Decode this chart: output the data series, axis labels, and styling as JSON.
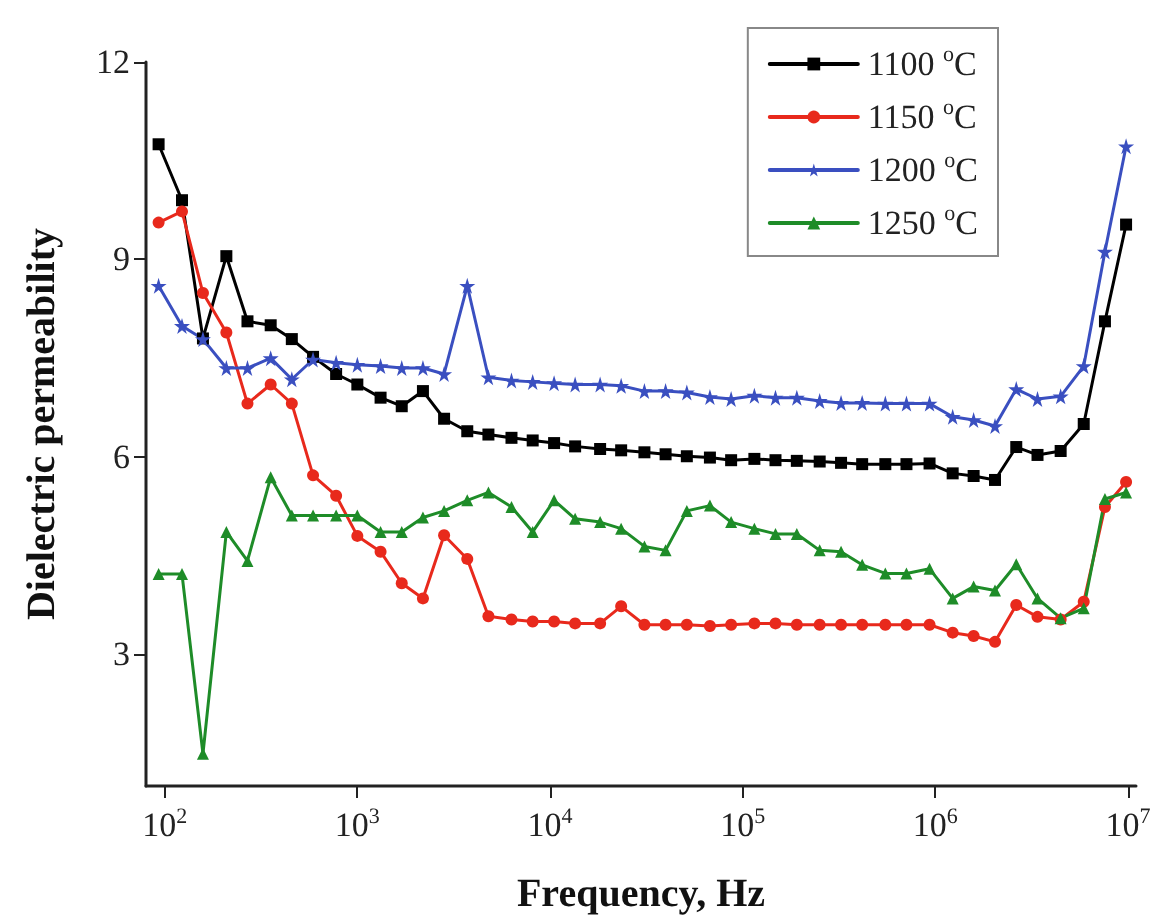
{
  "chart_data": {
    "type": "line",
    "xlabel": "Frequency, Hz",
    "ylabel": "Dielectric permeability",
    "x": [
      93,
      123,
      158,
      209,
      269,
      355,
      457,
      589,
      776,
      1000,
      1320,
      1700,
      2190,
      2820,
      3720,
      4790,
      6310,
      8130,
      10500,
      13500,
      18200,
      23400,
      30900,
      39800,
      51300,
      67600,
      87100,
      115000,
      148000,
      191000,
      251000,
      324000,
      417000,
      550000,
      708000,
      933000,
      1230000,
      1580000,
      2040000,
      2630000,
      3390000,
      4470000,
      5890000,
      7590000,
      9770000
    ],
    "series": [
      {
        "name": "1100 $^{o}$C",
        "color": "#000000",
        "marker": "square",
        "values": [
          10.75,
          9.9,
          7.8,
          9.05,
          8.06,
          8.0,
          7.79,
          7.52,
          7.26,
          7.1,
          6.9,
          6.77,
          7.0,
          6.58,
          6.39,
          6.34,
          6.29,
          6.25,
          6.21,
          6.16,
          6.12,
          6.1,
          6.07,
          6.04,
          6.01,
          5.99,
          5.95,
          5.97,
          5.95,
          5.94,
          5.93,
          5.91,
          5.89,
          5.89,
          5.89,
          5.9,
          5.75,
          5.71,
          5.65,
          6.15,
          6.03,
          6.09,
          6.5,
          8.06,
          9.53
        ]
      },
      {
        "name": "1150 $^{o}$C",
        "color": "#e8291c",
        "marker": "circle",
        "values": [
          9.56,
          9.73,
          8.49,
          7.89,
          6.81,
          7.1,
          6.81,
          5.72,
          5.41,
          4.8,
          4.56,
          4.08,
          3.85,
          4.81,
          4.45,
          3.58,
          3.53,
          3.5,
          3.5,
          3.47,
          3.47,
          3.73,
          3.45,
          3.45,
          3.45,
          3.43,
          3.45,
          3.47,
          3.47,
          3.45,
          3.45,
          3.45,
          3.45,
          3.45,
          3.45,
          3.45,
          3.33,
          3.28,
          3.19,
          3.75,
          3.57,
          3.53,
          3.8,
          5.24,
          5.62
        ]
      },
      {
        "name": "1200 $^{o}$C",
        "color": "#3a4fc0",
        "marker": "star",
        "values": [
          8.6,
          7.99,
          7.79,
          7.35,
          7.35,
          7.5,
          7.18,
          7.48,
          7.43,
          7.4,
          7.38,
          7.35,
          7.35,
          7.26,
          8.6,
          7.21,
          7.16,
          7.14,
          7.12,
          7.1,
          7.1,
          7.08,
          7.0,
          7.0,
          6.98,
          6.91,
          6.88,
          6.93,
          6.9,
          6.9,
          6.85,
          6.82,
          6.82,
          6.81,
          6.81,
          6.81,
          6.61,
          6.56,
          6.47,
          7.03,
          6.88,
          6.92,
          7.38,
          9.12,
          10.72
        ]
      },
      {
        "name": "1250 $^{o}$C",
        "color": "#1e8c28",
        "marker": "triangle",
        "values": [
          4.22,
          4.22,
          1.49,
          4.86,
          4.42,
          5.69,
          5.11,
          5.11,
          5.11,
          5.11,
          4.86,
          4.86,
          5.08,
          5.18,
          5.34,
          5.46,
          5.24,
          4.86,
          5.34,
          5.06,
          5.01,
          4.91,
          4.64,
          4.58,
          5.18,
          5.26,
          5.01,
          4.91,
          4.83,
          4.83,
          4.58,
          4.56,
          4.36,
          4.23,
          4.23,
          4.3,
          3.85,
          4.03,
          3.97,
          4.37,
          3.85,
          3.55,
          3.7,
          5.36,
          5.46
        ]
      }
    ],
    "log": "x",
    "xlim": [
      80,
      11000000
    ],
    "xticks": [
      {
        "value": 100,
        "label": "10$^{2}$"
      },
      {
        "value": 1000,
        "label": "10$^{3}$"
      },
      {
        "value": 10000,
        "label": "10$^{4}$"
      },
      {
        "value": 100000,
        "label": "10$^{5}$"
      },
      {
        "value": 1000000,
        "label": "10$^{6}$"
      },
      {
        "value": 10000000,
        "label": "10$^{7}$"
      }
    ],
    "ylim": [
      1,
      12
    ],
    "yticks": [
      3,
      6,
      9,
      12
    ],
    "grid": false,
    "legend": "top right",
    "line_style": "solid"
  }
}
